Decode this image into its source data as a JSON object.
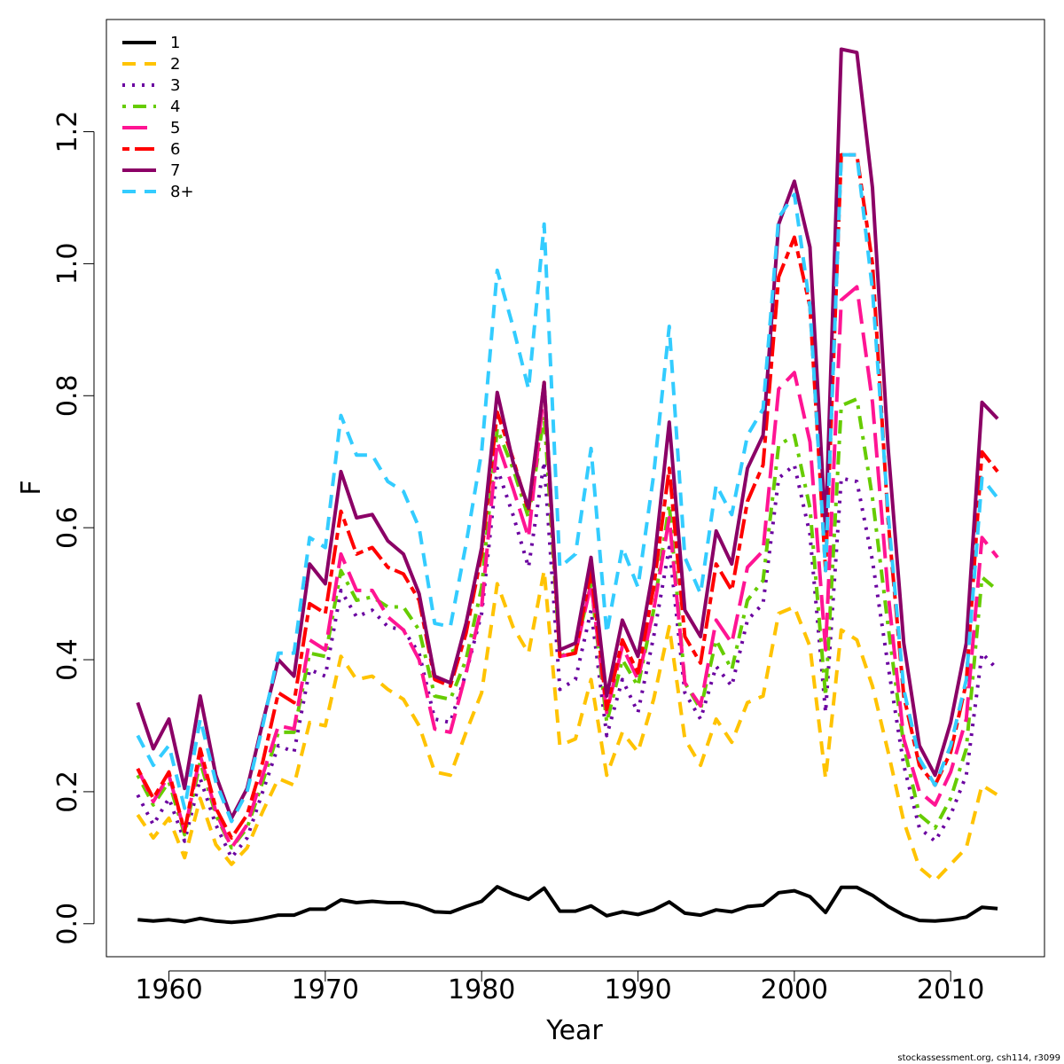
{
  "chart_data": {
    "type": "line",
    "title": "",
    "xlabel": "Year",
    "ylabel": "F",
    "xlim": [
      1956,
      2016
    ],
    "ylim": [
      -0.05,
      1.37
    ],
    "xticks": [
      1960,
      1970,
      1980,
      1990,
      2000,
      2010
    ],
    "xtick_labels": [
      "1960",
      "1970",
      "1980",
      "1990",
      "2000",
      "2010"
    ],
    "yticks": [
      0.0,
      0.2,
      0.4,
      0.6,
      0.8,
      1.0,
      1.2
    ],
    "ytick_labels": [
      "0.0",
      "0.2",
      "0.4",
      "0.6",
      "0.8",
      "1.0",
      "1.2"
    ],
    "grid": false,
    "legend_position": "top-left",
    "x": [
      1958,
      1959,
      1960,
      1961,
      1962,
      1963,
      1964,
      1965,
      1966,
      1967,
      1968,
      1969,
      1970,
      1971,
      1972,
      1973,
      1974,
      1975,
      1976,
      1977,
      1978,
      1979,
      1980,
      1981,
      1982,
      1983,
      1984,
      1985,
      1986,
      1987,
      1988,
      1989,
      1990,
      1991,
      1992,
      1993,
      1994,
      1995,
      1996,
      1997,
      1998,
      1999,
      2000,
      2001,
      2002,
      2003,
      2004,
      2005,
      2006,
      2007,
      2008,
      2009,
      2010,
      2011,
      2012,
      2013
    ],
    "series": [
      {
        "name": "1",
        "color": "#000000",
        "dash": "solid",
        "values": [
          0.006,
          0.004,
          0.006,
          0.003,
          0.008,
          0.004,
          0.002,
          0.004,
          0.008,
          0.013,
          0.013,
          0.022,
          0.022,
          0.036,
          0.032,
          0.034,
          0.032,
          0.032,
          0.027,
          0.018,
          0.017,
          0.026,
          0.034,
          0.056,
          0.045,
          0.037,
          0.054,
          0.019,
          0.019,
          0.027,
          0.012,
          0.018,
          0.014,
          0.021,
          0.033,
          0.016,
          0.013,
          0.021,
          0.018,
          0.026,
          0.028,
          0.047,
          0.05,
          0.041,
          0.017,
          0.055,
          0.055,
          0.043,
          0.026,
          0.013,
          0.005,
          0.004,
          0.006,
          0.01,
          0.025,
          0.023
        ]
      },
      {
        "name": "2",
        "color": "#FFC300",
        "dash": "dashed",
        "values": [
          0.165,
          0.13,
          0.16,
          0.1,
          0.19,
          0.12,
          0.09,
          0.115,
          0.17,
          0.22,
          0.21,
          0.305,
          0.3,
          0.405,
          0.37,
          0.375,
          0.355,
          0.34,
          0.3,
          0.23,
          0.225,
          0.29,
          0.35,
          0.515,
          0.45,
          0.41,
          0.535,
          0.27,
          0.28,
          0.37,
          0.225,
          0.29,
          0.26,
          0.34,
          0.45,
          0.28,
          0.24,
          0.31,
          0.275,
          0.335,
          0.345,
          0.47,
          0.48,
          0.42,
          0.22,
          0.445,
          0.43,
          0.36,
          0.26,
          0.155,
          0.085,
          0.065,
          0.09,
          0.115,
          0.21,
          0.195
        ]
      },
      {
        "name": "3",
        "color": "#6A00A0",
        "dash": "dotted",
        "values": [
          0.195,
          0.15,
          0.19,
          0.125,
          0.22,
          0.15,
          0.1,
          0.13,
          0.2,
          0.27,
          0.26,
          0.385,
          0.375,
          0.505,
          0.465,
          0.475,
          0.45,
          0.445,
          0.41,
          0.31,
          0.305,
          0.38,
          0.47,
          0.69,
          0.62,
          0.54,
          0.7,
          0.355,
          0.37,
          0.475,
          0.285,
          0.37,
          0.32,
          0.435,
          0.57,
          0.35,
          0.31,
          0.39,
          0.36,
          0.46,
          0.485,
          0.675,
          0.695,
          0.59,
          0.32,
          0.675,
          0.67,
          0.55,
          0.39,
          0.24,
          0.145,
          0.125,
          0.165,
          0.225,
          0.41,
          0.385
        ]
      },
      {
        "name": "4",
        "color": "#66CC00",
        "dash": "dotdash",
        "values": [
          0.225,
          0.18,
          0.215,
          0.135,
          0.245,
          0.165,
          0.115,
          0.145,
          0.215,
          0.29,
          0.29,
          0.41,
          0.405,
          0.535,
          0.49,
          0.495,
          0.48,
          0.48,
          0.445,
          0.345,
          0.34,
          0.4,
          0.51,
          0.75,
          0.69,
          0.615,
          0.77,
          0.405,
          0.415,
          0.515,
          0.305,
          0.4,
          0.36,
          0.475,
          0.635,
          0.365,
          0.325,
          0.43,
          0.385,
          0.49,
          0.52,
          0.725,
          0.74,
          0.63,
          0.345,
          0.785,
          0.795,
          0.645,
          0.45,
          0.27,
          0.165,
          0.145,
          0.19,
          0.265,
          0.525,
          0.505
        ]
      },
      {
        "name": "5",
        "color": "#FF1493",
        "dash": "longdash",
        "values": [
          0.235,
          0.185,
          0.225,
          0.14,
          0.255,
          0.17,
          0.115,
          0.15,
          0.225,
          0.3,
          0.295,
          0.43,
          0.415,
          0.56,
          0.505,
          0.505,
          0.465,
          0.445,
          0.4,
          0.295,
          0.29,
          0.38,
          0.48,
          0.73,
          0.66,
          0.585,
          0.81,
          0.405,
          0.41,
          0.515,
          0.32,
          0.42,
          0.37,
          0.475,
          0.615,
          0.365,
          0.33,
          0.46,
          0.425,
          0.54,
          0.565,
          0.81,
          0.835,
          0.73,
          0.415,
          0.945,
          0.965,
          0.79,
          0.5,
          0.28,
          0.2,
          0.18,
          0.23,
          0.31,
          0.585,
          0.555
        ]
      },
      {
        "name": "6",
        "color": "#FF0000",
        "dash": "twodash",
        "values": [
          0.235,
          0.19,
          0.23,
          0.14,
          0.265,
          0.175,
          0.13,
          0.165,
          0.245,
          0.35,
          0.335,
          0.485,
          0.47,
          0.625,
          0.56,
          0.57,
          0.54,
          0.53,
          0.49,
          0.37,
          0.36,
          0.44,
          0.56,
          0.775,
          0.705,
          0.625,
          0.82,
          0.405,
          0.41,
          0.535,
          0.325,
          0.43,
          0.38,
          0.51,
          0.69,
          0.435,
          0.395,
          0.545,
          0.505,
          0.64,
          0.695,
          0.98,
          1.04,
          0.935,
          0.535,
          1.165,
          1.165,
          1.0,
          0.61,
          0.345,
          0.24,
          0.21,
          0.26,
          0.365,
          0.715,
          0.685
        ]
      },
      {
        "name": "7",
        "color": "#8B0066",
        "dash": "solid",
        "values": [
          0.335,
          0.265,
          0.31,
          0.205,
          0.345,
          0.225,
          0.16,
          0.205,
          0.305,
          0.4,
          0.375,
          0.545,
          0.515,
          0.685,
          0.615,
          0.62,
          0.58,
          0.56,
          0.5,
          0.375,
          0.365,
          0.455,
          0.57,
          0.805,
          0.7,
          0.63,
          0.82,
          0.415,
          0.425,
          0.555,
          0.345,
          0.46,
          0.405,
          0.54,
          0.76,
          0.475,
          0.435,
          0.595,
          0.545,
          0.69,
          0.74,
          1.06,
          1.125,
          1.025,
          0.595,
          1.325,
          1.32,
          1.115,
          0.72,
          0.425,
          0.27,
          0.225,
          0.305,
          0.425,
          0.79,
          0.765
        ]
      },
      {
        "name": "8+",
        "color": "#33CCFF",
        "dash": "dashed",
        "values": [
          0.285,
          0.24,
          0.27,
          0.175,
          0.31,
          0.215,
          0.155,
          0.2,
          0.3,
          0.41,
          0.41,
          0.585,
          0.57,
          0.77,
          0.71,
          0.71,
          0.67,
          0.655,
          0.6,
          0.455,
          0.45,
          0.575,
          0.715,
          0.99,
          0.905,
          0.81,
          1.06,
          0.54,
          0.56,
          0.72,
          0.44,
          0.57,
          0.51,
          0.68,
          0.905,
          0.555,
          0.5,
          0.665,
          0.62,
          0.74,
          0.78,
          1.07,
          1.105,
          0.935,
          0.535,
          1.165,
          1.165,
          0.96,
          0.62,
          0.355,
          0.25,
          0.21,
          0.27,
          0.37,
          0.675,
          0.645
        ]
      }
    ]
  },
  "footer": {
    "note": "stockassessment.org, csh114, r3099"
  }
}
